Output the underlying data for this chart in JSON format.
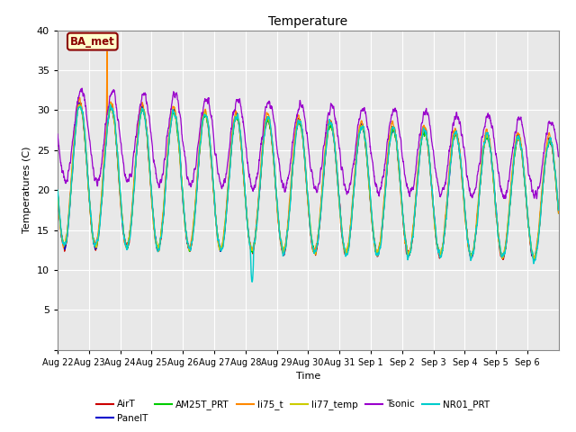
{
  "title": "Temperature",
  "ylabel": "Temperatures (C)",
  "xlabel": "Time",
  "ylim": [
    0,
    40
  ],
  "background_color": "#e8e8e8",
  "plot_bg_color": "#e8e8e8",
  "annotation_text": "BA_met",
  "annotation_bg": "#ffffcc",
  "annotation_border": "#8B0000",
  "series": {
    "AirT": {
      "color": "#cc0000"
    },
    "PanelT": {
      "color": "#0000cc"
    },
    "AM25T_PRT": {
      "color": "#00cc00"
    },
    "li75_t": {
      "color": "#ff8800"
    },
    "li77_temp": {
      "color": "#cccc00"
    },
    "Tsonic": {
      "color": "#9900cc"
    },
    "NR01_PRT": {
      "color": "#00cccc"
    }
  },
  "x_tick_labels": [
    "Aug 22",
    "Aug 23",
    "Aug 24",
    "Aug 25",
    "Aug 26",
    "Aug 27",
    "Aug 28",
    "Aug 29",
    "Aug 30",
    "Aug 31",
    "Sep 1",
    "Sep 2",
    "Sep 3",
    "Sep 4",
    "Sep 5",
    "Sep 6"
  ],
  "n_days": 16,
  "points_per_day": 144,
  "yticks": [
    0,
    5,
    10,
    15,
    20,
    25,
    30,
    35,
    40
  ],
  "ytick_labels": [
    "",
    "5",
    "10",
    "15",
    "20",
    "25",
    "30",
    "35",
    "40"
  ]
}
